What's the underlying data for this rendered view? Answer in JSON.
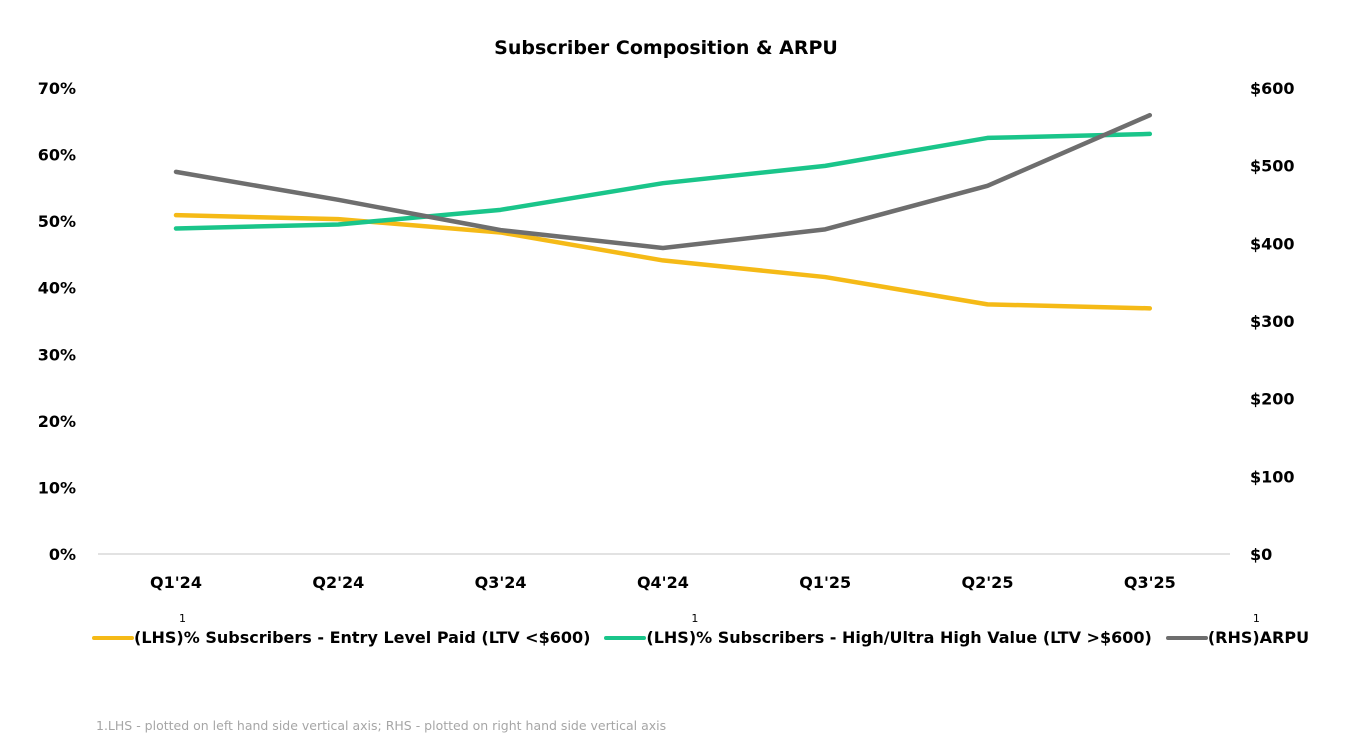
{
  "chart_data": {
    "type": "line",
    "title": "Subscriber Composition & ARPU",
    "categories": [
      "Q1'24",
      "Q2'24",
      "Q3'24",
      "Q4'24",
      "Q1'25",
      "Q2'25",
      "Q3'25"
    ],
    "left_axis": {
      "ticks": [
        "0%",
        "10%",
        "20%",
        "30%",
        "40%",
        "50%",
        "60%",
        "70%"
      ],
      "range": [
        0,
        70
      ],
      "unit": "%"
    },
    "right_axis": {
      "ticks": [
        "$0",
        "$100",
        "$200",
        "$300",
        "$400",
        "$500",
        "$600"
      ],
      "range": [
        0,
        600
      ],
      "unit": "$"
    },
    "grid": false,
    "legend_position": "bottom",
    "series": [
      {
        "name": "(LHS)% Subscribers - Entry Level Paid (LTV <$600)",
        "axis": "left",
        "color": "#F5BA17",
        "values": [
          50.9,
          50.3,
          48.3,
          44.1,
          41.6,
          37.5,
          36.9
        ]
      },
      {
        "name": "(LHS)% Subscribers - High/Ultra High Value (LTV >$600)",
        "axis": "left",
        "color": "#1AC58A",
        "values": [
          48.9,
          49.5,
          51.7,
          55.7,
          58.3,
          62.5,
          63.1
        ]
      },
      {
        "name": "(RHS)ARPU",
        "axis": "right",
        "color": "#6E6E6E",
        "values": [
          492,
          456,
          417,
          394,
          418,
          474,
          565
        ]
      }
    ],
    "legend_superscript": "1",
    "footnote": "1.LHS - plotted on left hand side vertical axis; RHS - plotted on right hand side vertical axis"
  }
}
